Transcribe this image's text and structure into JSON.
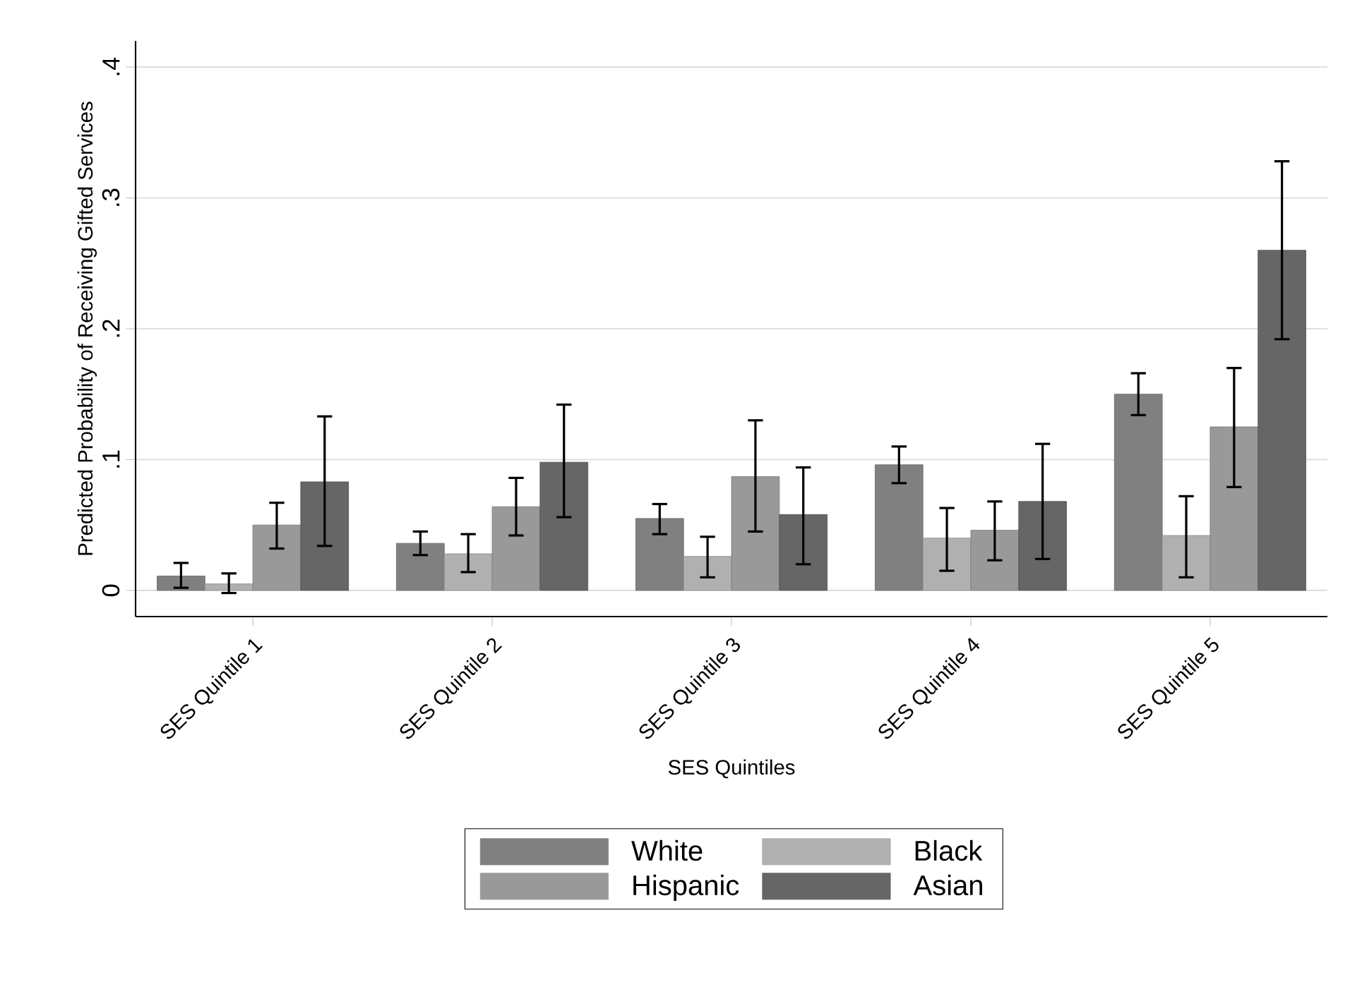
{
  "chart_data": {
    "type": "bar",
    "xlabel": "SES Quintiles",
    "ylabel": "Predicted Probability of Receiving Gifted Services",
    "categories": [
      "SES Quintile 1",
      "SES Quintile 2",
      "SES Quintile 3",
      "SES Quintile 4",
      "SES Quintile 5"
    ],
    "series": [
      {
        "name": "White",
        "color": "#808080",
        "values": [
          0.011,
          0.036,
          0.055,
          0.096,
          0.15
        ],
        "errors": [
          [
            0.002,
            0.021
          ],
          [
            0.027,
            0.045
          ],
          [
            0.043,
            0.066
          ],
          [
            0.082,
            0.11
          ],
          [
            0.134,
            0.166
          ]
        ]
      },
      {
        "name": "Black",
        "color": "#b0b0b0",
        "values": [
          0.005,
          0.028,
          0.026,
          0.04,
          0.042
        ],
        "errors": [
          [
            -0.002,
            0.013
          ],
          [
            0.014,
            0.043
          ],
          [
            0.01,
            0.041
          ],
          [
            0.015,
            0.063
          ],
          [
            0.01,
            0.072
          ]
        ]
      },
      {
        "name": "Hispanic",
        "color": "#999999",
        "values": [
          0.05,
          0.064,
          0.087,
          0.046,
          0.125
        ],
        "errors": [
          [
            0.032,
            0.067
          ],
          [
            0.042,
            0.086
          ],
          [
            0.045,
            0.13
          ],
          [
            0.023,
            0.068
          ],
          [
            0.079,
            0.17
          ]
        ]
      },
      {
        "name": "Asian",
        "color": "#666666",
        "values": [
          0.083,
          0.098,
          0.058,
          0.068,
          0.26
        ],
        "errors": [
          [
            0.034,
            0.133
          ],
          [
            0.056,
            0.142
          ],
          [
            0.02,
            0.094
          ],
          [
            0.024,
            0.112
          ],
          [
            0.192,
            0.328
          ]
        ]
      }
    ],
    "ylim": [
      -0.02,
      0.42
    ],
    "yticks": [
      0,
      {
        "value": 0.1,
        "label": ".1"
      },
      {
        "value": 0.2,
        "label": ".2"
      },
      {
        "value": 0.3,
        "label": ".3"
      },
      {
        "value": 0.4,
        "label": ".4"
      }
    ],
    "grid": "y",
    "legend": "bottom"
  }
}
